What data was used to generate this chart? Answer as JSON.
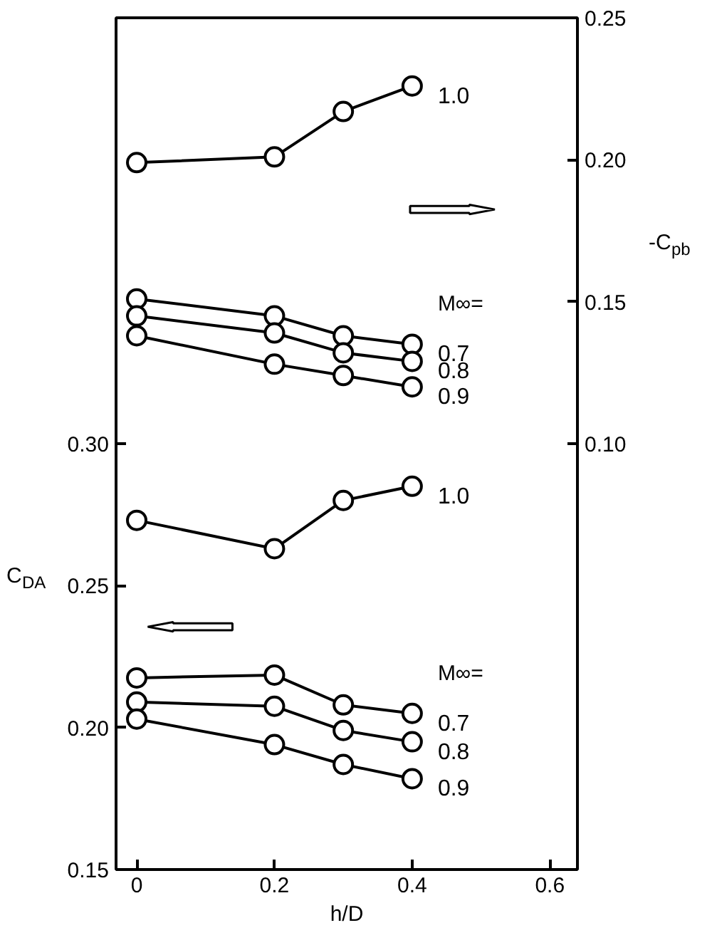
{
  "chart_data": {
    "type": "line",
    "xlabel": "h/D",
    "ylabel": "C$_{DA}$",
    "y2label": "-C$_{pb}$",
    "x": [
      0,
      0.2,
      0.3,
      0.4
    ],
    "xlim": [
      -0.03,
      0.64
    ],
    "xticks": [
      0,
      0.2,
      0.4,
      0.6
    ],
    "ylim": [
      0.15,
      0.45
    ],
    "yticks": [
      0.15,
      {
        "value": 0.2,
        "label": "0.20"
      },
      0.25,
      {
        "value": 0.3,
        "label": "0.30"
      }
    ],
    "y2lim": [
      -0.05,
      0.25
    ],
    "y2ticks": [
      {
        "value": 0.1,
        "label": "0.10"
      },
      0.15,
      {
        "value": 0.2,
        "label": "0.20"
      },
      0.25
    ],
    "marker": "circle",
    "legend": false,
    "grid": false,
    "series": [
      {
        "name": "1.0",
        "color": "#000000",
        "axis": "y2",
        "values": [
          0.199,
          0.201,
          0.217,
          0.226
        ]
      },
      {
        "name": "0.7",
        "color": "#000000",
        "axis": "y2",
        "values": [
          0.151,
          0.145,
          0.138,
          0.135
        ]
      },
      {
        "name": "0.8",
        "color": "#000000",
        "axis": "y2",
        "values": [
          0.145,
          0.139,
          0.132,
          0.129
        ]
      },
      {
        "name": "0.9",
        "color": "#000000",
        "axis": "y2",
        "values": [
          0.138,
          0.128,
          0.124,
          0.12
        ]
      },
      {
        "name": "1.0",
        "color": "#000000",
        "values": [
          0.273,
          0.263,
          0.28,
          0.285
        ]
      },
      {
        "name": "0.7",
        "color": "#000000",
        "values": [
          0.2175,
          0.2185,
          0.208,
          0.205
        ]
      },
      {
        "name": "0.8",
        "color": "#000000",
        "values": [
          0.209,
          0.2075,
          0.199,
          0.195
        ]
      },
      {
        "name": "0.9",
        "color": "#000000",
        "values": [
          0.203,
          0.194,
          0.187,
          0.182
        ]
      }
    ],
    "annotations": [
      "M∞=",
      "M∞="
    ]
  }
}
